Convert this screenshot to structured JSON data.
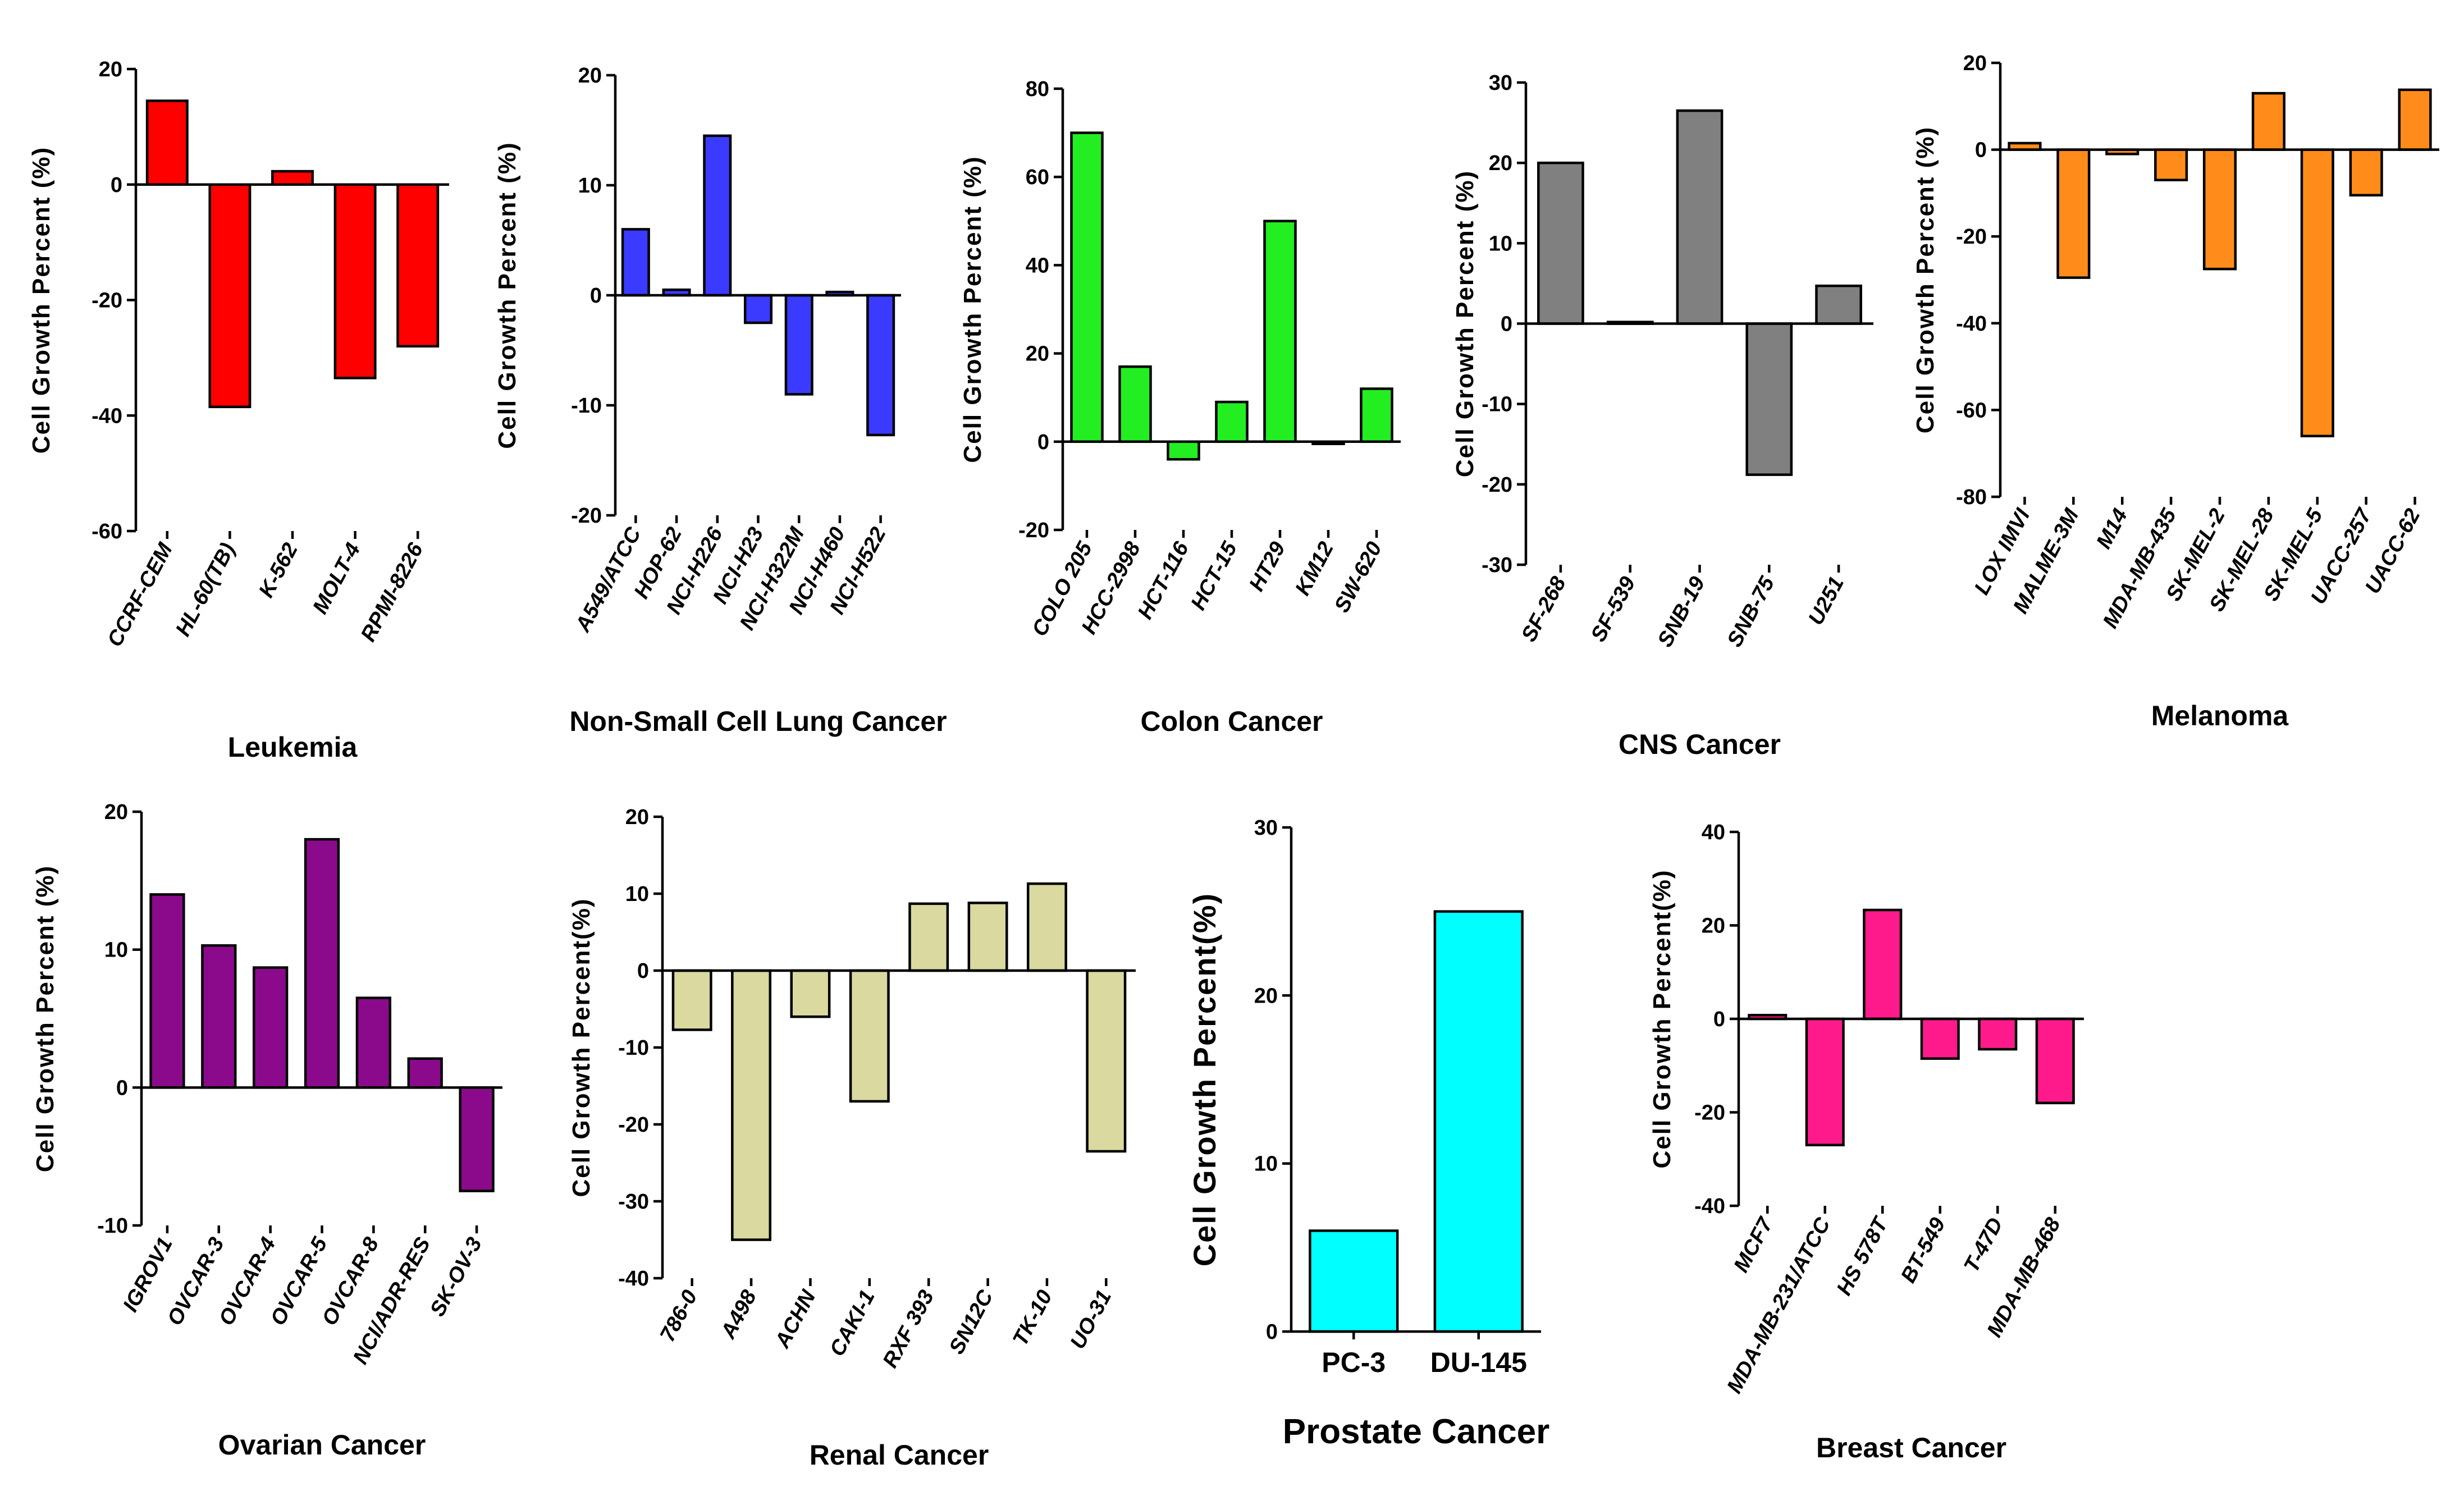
{
  "chart_data": [
    {
      "type": "bar",
      "xlabel": "Leukemia",
      "ylabel": "Cell Growth Percent (%)",
      "color": "#ff0000",
      "ylim": [
        -60,
        20
      ],
      "yticks": [
        20,
        0,
        -20,
        -40,
        -60
      ],
      "categories": [
        "CCRF-CEM",
        "HL-60(TB)",
        "K-562",
        "MOLT-4",
        "RPMI-8226"
      ],
      "values": [
        14.5,
        -38.5,
        2.3,
        -33.5,
        -28
      ]
    },
    {
      "type": "bar",
      "xlabel": "Non-Small Cell Lung Cancer",
      "ylabel": "Cell Growth Percent (%)",
      "color": "#3b3bff",
      "ylim": [
        -20,
        20
      ],
      "yticks": [
        20,
        10,
        0,
        -10,
        -20
      ],
      "categories": [
        "A549/ATCC",
        "HOP-62",
        "NCI-H226",
        "NCI-H23",
        "NCI-H322M",
        "NCI-H460",
        "NCI-H522"
      ],
      "values": [
        6,
        0.5,
        14.5,
        -2.5,
        -9,
        0.3,
        -12.7
      ]
    },
    {
      "type": "bar",
      "xlabel": "Colon Cancer",
      "ylabel": "Cell Growth Percent (%)",
      "color": "#22ee22",
      "ylim": [
        -20,
        80
      ],
      "yticks": [
        80,
        60,
        40,
        20,
        0,
        -20
      ],
      "categories": [
        "COLO 205",
        "HCC-2998",
        "HCT-116",
        "HCT-15",
        "HT29",
        "KM12",
        "SW-620"
      ],
      "values": [
        70,
        17,
        -4,
        9,
        50,
        -0.5,
        12
      ]
    },
    {
      "type": "bar",
      "xlabel": "CNS Cancer",
      "ylabel": "Cell Growth Percent (%)",
      "color": "#808080",
      "ylim": [
        -30,
        30
      ],
      "yticks": [
        30,
        20,
        10,
        0,
        -10,
        -20,
        -30
      ],
      "categories": [
        "SF-268",
        "SF-539",
        "SNB-19",
        "SNB-75",
        "U251"
      ],
      "values": [
        20,
        0.2,
        26.5,
        -18.8,
        4.7
      ]
    },
    {
      "type": "bar",
      "xlabel": "Melanoma",
      "ylabel": "Cell Growth Percent (%)",
      "color": "#ff8c1a",
      "ylim": [
        -80,
        20
      ],
      "yticks": [
        20,
        0,
        -20,
        -40,
        -60,
        -80
      ],
      "categories": [
        "LOX IMVI",
        "MALME-3M",
        "M14",
        "MDA-MB-435",
        "SK-MEL-2",
        "SK-MEL-28",
        "SK-MEL-5",
        "UACC-257",
        "UACC-62"
      ],
      "values": [
        1.5,
        -29.5,
        -1,
        -7,
        -27.5,
        13,
        -66,
        -10.5,
        13.8
      ]
    },
    {
      "type": "bar",
      "xlabel": "Ovarian Cancer",
      "ylabel": "Cell Growth Percent (%)",
      "color": "#8b0a8b",
      "ylim": [
        -10,
        20
      ],
      "yticks": [
        20,
        10,
        0,
        -10
      ],
      "categories": [
        "IGROV1",
        "OVCAR-3",
        "OVCAR-4",
        "OVCAR-5",
        "OVCAR-8",
        "NCI/ADR-RES",
        "SK-OV-3"
      ],
      "values": [
        14,
        10.3,
        8.7,
        18,
        6.5,
        2.1,
        -7.5
      ]
    },
    {
      "type": "bar",
      "xlabel": "Renal Cancer",
      "ylabel": "Cell  Growth Percent(%)",
      "color": "#d9d9a0",
      "ylim": [
        -40,
        20
      ],
      "yticks": [
        20,
        10,
        0,
        -10,
        -20,
        -30,
        -40
      ],
      "categories": [
        "786-0",
        "A498",
        "ACHN",
        "CAKI-1",
        "RXF 393",
        "SN12C",
        "TK-10",
        "UO-31"
      ],
      "values": [
        -7.7,
        -35,
        -6,
        -17,
        8.7,
        8.8,
        11.3,
        -23.5
      ]
    },
    {
      "type": "bar",
      "xlabel": "Prostate Cancer",
      "ylabel": "Cell  Growth Percent(%)",
      "color": "#00ffff",
      "ylim": [
        0,
        30
      ],
      "yticks": [
        30,
        20,
        10,
        0
      ],
      "categories": [
        "PC-3",
        "DU-145"
      ],
      "values": [
        6,
        25
      ]
    },
    {
      "type": "bar",
      "xlabel": "Breast Cancer",
      "ylabel": "Cell  Growth Percent(%)",
      "color": "#ff1a8c",
      "ylim": [
        -40,
        40
      ],
      "yticks": [
        40,
        20,
        0,
        -20,
        -40
      ],
      "categories": [
        "MCF7",
        "MDA-MB-231/ATCC",
        "HS 578T",
        "BT-549",
        "T-47D",
        "MDA-MB-468"
      ],
      "values": [
        0.8,
        -27,
        23.3,
        -8.5,
        -6.5,
        -18
      ]
    }
  ]
}
